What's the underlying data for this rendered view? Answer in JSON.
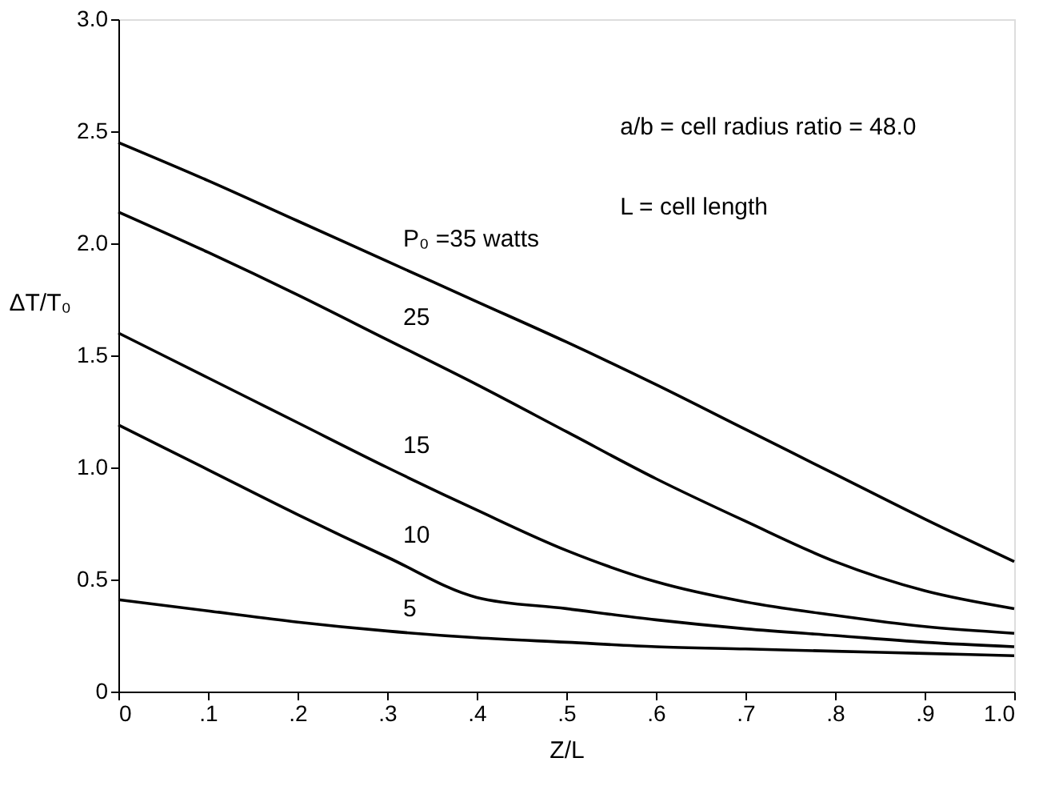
{
  "chart_data": {
    "type": "line",
    "xlabel": "Z/L",
    "ylabel": "ΔT/T₀",
    "x": [
      0,
      0.1,
      0.2,
      0.3,
      0.4,
      0.5,
      0.6,
      0.7,
      0.8,
      0.9,
      1.0
    ],
    "series": [
      {
        "name": "P₀ =35 watts",
        "color": "#000000",
        "values": [
          2.45,
          2.28,
          2.1,
          1.92,
          1.74,
          1.56,
          1.37,
          1.17,
          0.97,
          0.77,
          0.58
        ]
      },
      {
        "name": "25",
        "color": "#000000",
        "values": [
          2.14,
          1.96,
          1.77,
          1.57,
          1.37,
          1.16,
          0.95,
          0.76,
          0.58,
          0.45,
          0.37
        ]
      },
      {
        "name": "15",
        "color": "#000000",
        "values": [
          1.6,
          1.4,
          1.2,
          1.0,
          0.81,
          0.63,
          0.49,
          0.4,
          0.34,
          0.29,
          0.26
        ]
      },
      {
        "name": "10",
        "color": "#000000",
        "values": [
          1.19,
          0.99,
          0.79,
          0.6,
          0.42,
          0.37,
          0.32,
          0.28,
          0.25,
          0.22,
          0.2
        ]
      },
      {
        "name": "5",
        "color": "#000000",
        "values": [
          0.41,
          0.36,
          0.31,
          0.27,
          0.24,
          0.22,
          0.2,
          0.19,
          0.18,
          0.17,
          0.16
        ]
      }
    ],
    "annotations": [
      "a/b = cell radius ratio = 48.0",
      "L = cell length"
    ],
    "xlim": [
      0,
      1.0
    ],
    "xticks": [
      0,
      {
        "value": 0.1,
        "label": ".1"
      },
      {
        "value": 0.2,
        "label": ".2"
      },
      {
        "value": 0.3,
        "label": ".3"
      },
      {
        "value": 0.4,
        "label": ".4"
      },
      {
        "value": 0.5,
        "label": ".5"
      },
      {
        "value": 0.6,
        "label": ".6"
      },
      {
        "value": 0.7,
        "label": ".7"
      },
      {
        "value": 0.8,
        "label": ".8"
      },
      {
        "value": 0.9,
        "label": ".9"
      },
      {
        "value": 1.0,
        "label": "1.0"
      }
    ],
    "ylim": [
      0,
      3.0
    ],
    "yticks": [
      0,
      {
        "value": 0.5,
        "label": "0.5"
      },
      {
        "value": 1.0,
        "label": "1.0"
      },
      {
        "value": 1.5,
        "label": "1.5"
      },
      {
        "value": 2.0,
        "label": "2.0"
      },
      {
        "value": 2.5,
        "label": "2.5"
      },
      {
        "value": 3.0,
        "label": "3.0"
      }
    ],
    "grid": false,
    "legend": false,
    "marker": "none",
    "line_style": "solid"
  }
}
